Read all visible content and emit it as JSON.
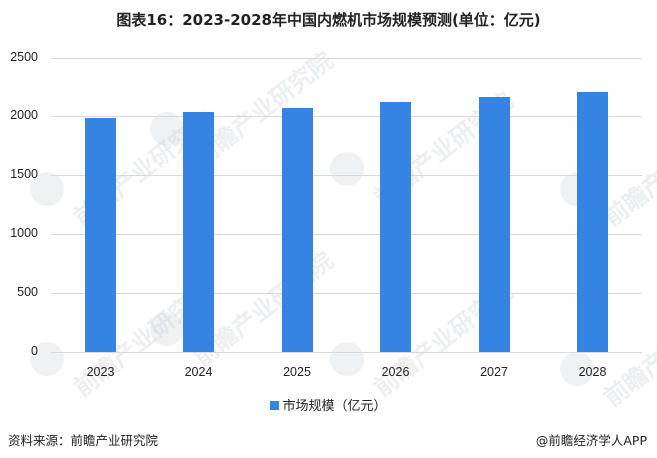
{
  "title": "图表16：2023-2028年中国内燃机市场规模预测(单位：亿元)",
  "legend": {
    "label": "市场规模（亿元）",
    "color": "#3584e4"
  },
  "footer": {
    "source": "资料来源：前瞻产业研究院",
    "credit": "@前瞻经济学人APP"
  },
  "watermark": "前瞻产业研究院",
  "y_ticks": [
    "0",
    "500",
    "1000",
    "1500",
    "2000",
    "2500"
  ],
  "x_ticks": [
    "2023",
    "2024",
    "2025",
    "2026",
    "2027",
    "2028"
  ],
  "chart_data": {
    "type": "bar",
    "title": "图表16：2023-2028年中国内燃机市场规模预测(单位：亿元)",
    "categories": [
      "2023",
      "2024",
      "2025",
      "2026",
      "2027",
      "2028"
    ],
    "series": [
      {
        "name": "市场规模（亿元）",
        "values": [
          1990,
          2035,
          2075,
          2120,
          2165,
          2210
        ],
        "color": "#3584e4"
      }
    ],
    "xlabel": "",
    "ylabel": "",
    "ylim": [
      0,
      2500
    ],
    "yticks": [
      0,
      500,
      1000,
      1500,
      2000,
      2500
    ],
    "grid": true,
    "legend_position": "bottom"
  }
}
